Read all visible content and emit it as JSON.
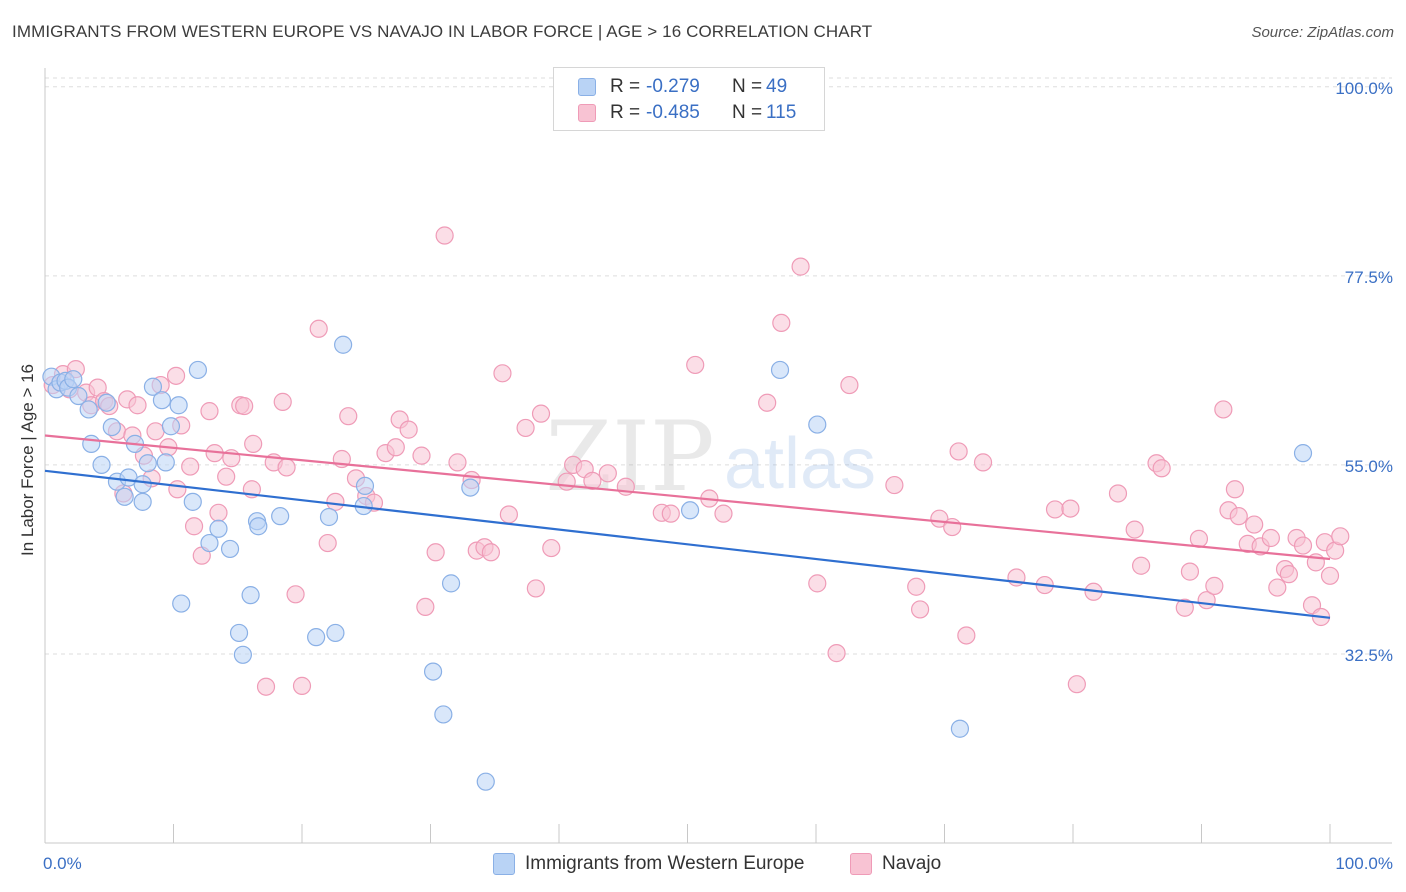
{
  "title": "IMMIGRANTS FROM WESTERN EUROPE VS NAVAJO IN LABOR FORCE | AGE > 16 CORRELATION CHART",
  "source": "Source: ZipAtlas.com",
  "watermark": {
    "zip": "ZIP",
    "atlas": "atlas"
  },
  "legend": {
    "r_label": "R =",
    "n_label": "N =",
    "series": [
      {
        "r": "-0.279",
        "n": "49"
      },
      {
        "r": "-0.485",
        "n": "115"
      }
    ]
  },
  "colors": {
    "blue_fill": "#b9d3f5",
    "blue_stroke": "#8ab0e6",
    "blue_line": "#2f6fd0",
    "pink_fill": "#f8c3d3",
    "pink_stroke": "#ef9bb7",
    "pink_line": "#e8719a",
    "tick_label": "#3a6fc4",
    "grid": "#dedede"
  },
  "chart_data": {
    "type": "scatter",
    "title": "IMMIGRANTS FROM WESTERN EUROPE VS NAVAJO IN LABOR FORCE | AGE > 16 CORRELATION CHART",
    "xlabel": "",
    "ylabel": "In Labor Force | Age > 16",
    "xlim": [
      0,
      100
    ],
    "ylim": [
      10,
      102
    ],
    "x_tick_labels": [
      "0.0%",
      "100.0%"
    ],
    "y_ticks": [
      32.5,
      55.0,
      77.5,
      100.0
    ],
    "y_tick_labels": [
      "32.5%",
      "55.0%",
      "77.5%",
      "100.0%"
    ],
    "series": [
      {
        "name": "Immigrants from Western Europe",
        "color": "blue",
        "r": -0.279,
        "n": 49,
        "trend": {
          "x0": 0,
          "y0": 54.3,
          "x1": 100,
          "y1": 36.8
        },
        "points": [
          [
            0.5,
            65.5
          ],
          [
            0.9,
            64.0
          ],
          [
            1.2,
            64.8
          ],
          [
            1.6,
            65.0
          ],
          [
            1.8,
            64.2
          ],
          [
            2.2,
            65.2
          ],
          [
            2.6,
            63.2
          ],
          [
            3.4,
            61.6
          ],
          [
            3.6,
            57.5
          ],
          [
            4.4,
            55.0
          ],
          [
            4.8,
            62.4
          ],
          [
            5.2,
            59.5
          ],
          [
            5.6,
            53.0
          ],
          [
            6.2,
            51.2
          ],
          [
            6.5,
            53.5
          ],
          [
            7.0,
            57.5
          ],
          [
            7.6,
            52.7
          ],
          [
            7.6,
            50.6
          ],
          [
            8.0,
            55.2
          ],
          [
            8.4,
            64.3
          ],
          [
            9.1,
            62.7
          ],
          [
            9.4,
            55.3
          ],
          [
            9.8,
            59.6
          ],
          [
            10.4,
            62.1
          ],
          [
            10.6,
            38.5
          ],
          [
            11.5,
            50.6
          ],
          [
            11.9,
            66.3
          ],
          [
            12.8,
            45.7
          ],
          [
            13.5,
            47.4
          ],
          [
            14.4,
            45.0
          ],
          [
            15.1,
            35.0
          ],
          [
            15.4,
            32.4
          ],
          [
            16.0,
            39.5
          ],
          [
            16.5,
            48.3
          ],
          [
            16.6,
            47.7
          ],
          [
            18.3,
            48.9
          ],
          [
            21.1,
            34.5
          ],
          [
            22.1,
            48.8
          ],
          [
            22.6,
            35.0
          ],
          [
            23.2,
            69.3
          ],
          [
            24.8,
            50.1
          ],
          [
            24.9,
            52.5
          ],
          [
            30.2,
            30.4
          ],
          [
            31.0,
            25.3
          ],
          [
            31.6,
            40.9
          ],
          [
            33.1,
            52.3
          ],
          [
            34.3,
            17.3
          ],
          [
            50.2,
            49.6
          ],
          [
            57.2,
            66.3
          ],
          [
            60.1,
            59.8
          ],
          [
            71.2,
            23.6
          ],
          [
            97.9,
            56.4
          ]
        ]
      },
      {
        "name": "Navajo",
        "color": "pink",
        "r": -0.485,
        "n": 115,
        "trend": {
          "x0": 0,
          "y0": 58.5,
          "x1": 100,
          "y1": 43.8
        },
        "points": [
          [
            0.6,
            64.5
          ],
          [
            1.4,
            65.8
          ],
          [
            1.9,
            64.0
          ],
          [
            2.4,
            66.4
          ],
          [
            3.2,
            63.6
          ],
          [
            3.6,
            62.1
          ],
          [
            4.1,
            64.2
          ],
          [
            4.6,
            62.6
          ],
          [
            5.0,
            62.0
          ],
          [
            5.6,
            59.0
          ],
          [
            6.1,
            51.6
          ],
          [
            6.4,
            62.8
          ],
          [
            6.8,
            58.5
          ],
          [
            7.2,
            62.1
          ],
          [
            7.7,
            56.1
          ],
          [
            8.3,
            53.4
          ],
          [
            8.6,
            59.0
          ],
          [
            9.0,
            64.5
          ],
          [
            9.6,
            57.1
          ],
          [
            10.2,
            65.6
          ],
          [
            10.3,
            52.1
          ],
          [
            10.6,
            59.7
          ],
          [
            11.3,
            54.8
          ],
          [
            11.6,
            47.7
          ],
          [
            12.2,
            44.2
          ],
          [
            12.8,
            61.4
          ],
          [
            13.2,
            56.4
          ],
          [
            13.5,
            49.3
          ],
          [
            14.1,
            53.6
          ],
          [
            14.5,
            55.8
          ],
          [
            15.2,
            62.1
          ],
          [
            15.5,
            62.0
          ],
          [
            16.1,
            52.1
          ],
          [
            16.2,
            57.5
          ],
          [
            17.2,
            28.6
          ],
          [
            17.8,
            55.3
          ],
          [
            18.5,
            62.5
          ],
          [
            18.8,
            54.7
          ],
          [
            19.5,
            39.6
          ],
          [
            20.0,
            28.7
          ],
          [
            21.3,
            71.2
          ],
          [
            22.0,
            45.7
          ],
          [
            22.6,
            50.6
          ],
          [
            23.1,
            55.7
          ],
          [
            23.6,
            60.8
          ],
          [
            24.2,
            53.4
          ],
          [
            25.0,
            51.3
          ],
          [
            25.6,
            50.5
          ],
          [
            26.5,
            56.4
          ],
          [
            27.3,
            57.1
          ],
          [
            27.6,
            60.4
          ],
          [
            28.3,
            59.2
          ],
          [
            29.3,
            56.1
          ],
          [
            29.6,
            38.1
          ],
          [
            30.4,
            44.6
          ],
          [
            31.1,
            82.3
          ],
          [
            32.1,
            55.3
          ],
          [
            33.2,
            53.2
          ],
          [
            33.6,
            44.8
          ],
          [
            34.2,
            45.2
          ],
          [
            34.7,
            44.6
          ],
          [
            35.6,
            65.9
          ],
          [
            36.1,
            49.1
          ],
          [
            37.4,
            59.4
          ],
          [
            38.2,
            40.3
          ],
          [
            38.6,
            61.1
          ],
          [
            39.4,
            45.1
          ],
          [
            40.6,
            53.0
          ],
          [
            41.1,
            55.0
          ],
          [
            42.0,
            54.5
          ],
          [
            42.6,
            53.1
          ],
          [
            43.8,
            54.0
          ],
          [
            45.2,
            52.4
          ],
          [
            48.0,
            49.3
          ],
          [
            48.7,
            49.2
          ],
          [
            50.6,
            66.9
          ],
          [
            51.7,
            51.0
          ],
          [
            52.8,
            49.2
          ],
          [
            56.2,
            62.4
          ],
          [
            57.3,
            71.9
          ],
          [
            58.8,
            78.6
          ],
          [
            60.1,
            40.9
          ],
          [
            61.6,
            32.6
          ],
          [
            62.6,
            64.5
          ],
          [
            66.1,
            52.6
          ],
          [
            67.8,
            40.5
          ],
          [
            68.1,
            37.8
          ],
          [
            69.6,
            48.6
          ],
          [
            70.6,
            47.6
          ],
          [
            71.1,
            56.6
          ],
          [
            71.7,
            34.7
          ],
          [
            73.0,
            55.3
          ],
          [
            75.6,
            41.6
          ],
          [
            77.8,
            40.7
          ],
          [
            78.6,
            49.7
          ],
          [
            79.8,
            49.8
          ],
          [
            80.3,
            28.9
          ],
          [
            81.6,
            39.9
          ],
          [
            83.5,
            51.6
          ],
          [
            84.8,
            47.3
          ],
          [
            85.3,
            43.0
          ],
          [
            86.5,
            55.2
          ],
          [
            86.9,
            54.6
          ],
          [
            88.7,
            38.0
          ],
          [
            89.1,
            42.3
          ],
          [
            89.8,
            46.2
          ],
          [
            90.4,
            38.9
          ],
          [
            91.0,
            40.6
          ],
          [
            91.7,
            61.6
          ],
          [
            92.1,
            49.6
          ],
          [
            92.6,
            52.1
          ],
          [
            92.9,
            48.9
          ],
          [
            93.6,
            45.6
          ],
          [
            94.1,
            47.9
          ],
          [
            94.6,
            45.3
          ],
          [
            95.4,
            46.3
          ],
          [
            95.9,
            40.4
          ],
          [
            96.5,
            42.6
          ],
          [
            96.8,
            42.0
          ],
          [
            97.4,
            46.3
          ],
          [
            97.9,
            45.4
          ],
          [
            98.6,
            38.3
          ],
          [
            98.9,
            43.4
          ],
          [
            99.3,
            36.9
          ],
          [
            99.6,
            45.8
          ],
          [
            100.0,
            41.8
          ],
          [
            100.4,
            44.8
          ],
          [
            100.8,
            46.5
          ]
        ]
      }
    ]
  },
  "bottom_legend": [
    "Immigrants from Western Europe",
    "Navajo"
  ]
}
